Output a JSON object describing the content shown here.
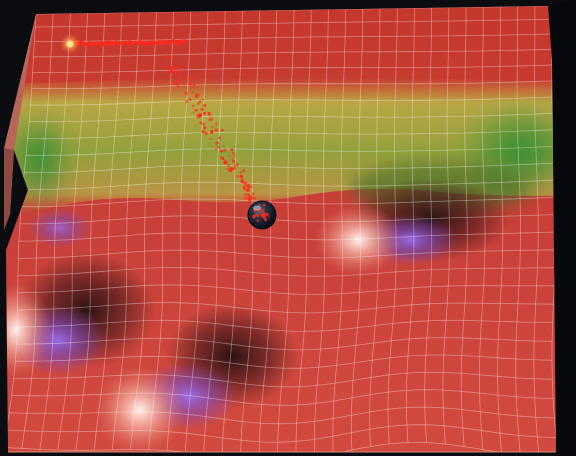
{
  "scene": {
    "surface_color": "#c43a2e",
    "band_color": "#6f9a2a",
    "background_color": "#0b0c10",
    "trail_color": "#ff2a1a",
    "ball_color": "#1e2a3a",
    "hill_color": "#ffd6cf",
    "valley_color": "#8a5cd8",
    "grid_color": "#ffffff"
  }
}
